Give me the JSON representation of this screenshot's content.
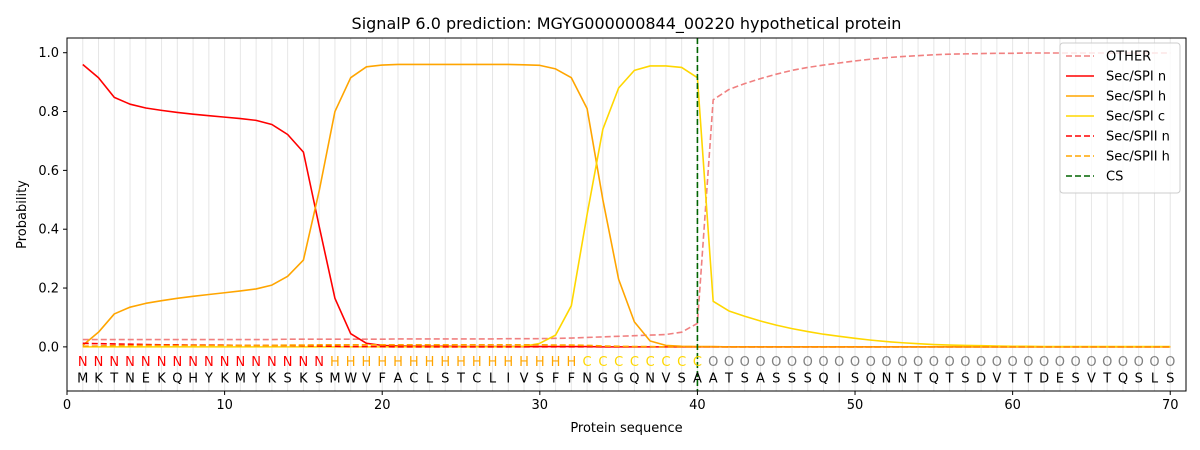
{
  "chart_data": {
    "type": "line",
    "title": "SignalP 6.0 prediction: MGYG000000844_00220 hypothetical protein",
    "xlabel": "Protein sequence",
    "ylabel": "Probability",
    "xlim": [
      0,
      71
    ],
    "ylim": [
      -0.15,
      1.05
    ],
    "xticks": [
      0,
      10,
      20,
      30,
      40,
      50,
      60,
      70
    ],
    "yticks": [
      0.0,
      0.2,
      0.4,
      0.6,
      0.8,
      1.0
    ],
    "ytick_labels": [
      "0.0",
      "0.2",
      "0.4",
      "0.6",
      "0.8",
      "1.0"
    ],
    "grid": "vertical lines at each residue",
    "legend_position": "top-right",
    "cleavage_site": 40,
    "sequence": [
      "M",
      "K",
      "T",
      "N",
      "E",
      "K",
      "Q",
      "H",
      "Y",
      "K",
      "M",
      "Y",
      "K",
      "S",
      "K",
      "S",
      "M",
      "W",
      "V",
      "F",
      "A",
      "C",
      "L",
      "S",
      "T",
      "C",
      "L",
      "I",
      "V",
      "S",
      "F",
      "F",
      "N",
      "G",
      "G",
      "Q",
      "N",
      "V",
      "S",
      "A",
      "A",
      "T",
      "S",
      "A",
      "S",
      "S",
      "S",
      "Q",
      "I",
      "S",
      "Q",
      "N",
      "N",
      "T",
      "Q",
      "T",
      "S",
      "D",
      "V",
      "T",
      "T",
      "D",
      "E",
      "S",
      "V",
      "T",
      "Q",
      "S",
      "L",
      "S"
    ],
    "annotation": [
      "N",
      "N",
      "N",
      "N",
      "N",
      "N",
      "N",
      "N",
      "N",
      "N",
      "N",
      "N",
      "N",
      "N",
      "N",
      "N",
      "H",
      "H",
      "H",
      "H",
      "H",
      "H",
      "H",
      "H",
      "H",
      "H",
      "H",
      "H",
      "H",
      "H",
      "H",
      "H",
      "C",
      "C",
      "C",
      "C",
      "C",
      "C",
      "C",
      "C",
      "O",
      "O",
      "O",
      "O",
      "O",
      "O",
      "O",
      "O",
      "O",
      "O",
      "O",
      "O",
      "O",
      "O",
      "O",
      "O",
      "O",
      "O",
      "O",
      "O",
      "O",
      "O",
      "O",
      "O",
      "O",
      "O",
      "O",
      "O",
      "O",
      "O"
    ],
    "annotation_colors": {
      "N": "#ff0000",
      "H": "#ffa500",
      "C": "#ffd700",
      "O": "#808080"
    },
    "series": [
      {
        "name": "OTHER",
        "color": "#f08080",
        "dash": "dashed",
        "values": [
          0.025,
          0.025,
          0.025,
          0.025,
          0.025,
          0.025,
          0.025,
          0.025,
          0.025,
          0.025,
          0.025,
          0.025,
          0.025,
          0.026,
          0.026,
          0.026,
          0.026,
          0.026,
          0.026,
          0.026,
          0.027,
          0.027,
          0.027,
          0.027,
          0.027,
          0.027,
          0.027,
          0.028,
          0.028,
          0.028,
          0.029,
          0.03,
          0.032,
          0.034,
          0.036,
          0.038,
          0.04,
          0.042,
          0.05,
          0.08,
          0.84,
          0.875,
          0.895,
          0.912,
          0.927,
          0.94,
          0.95,
          0.958,
          0.965,
          0.972,
          0.978,
          0.983,
          0.987,
          0.99,
          0.993,
          0.995,
          0.996,
          0.997,
          0.998,
          0.998,
          0.999,
          0.999,
          0.999,
          0.999,
          0.999,
          0.999,
          0.999,
          0.999,
          0.999,
          0.999
        ]
      },
      {
        "name": "Sec/SPI n",
        "color": "#ff0000",
        "dash": "solid",
        "values": [
          0.96,
          0.915,
          0.848,
          0.825,
          0.812,
          0.804,
          0.797,
          0.791,
          0.786,
          0.781,
          0.776,
          0.77,
          0.756,
          0.722,
          0.662,
          0.41,
          0.165,
          0.045,
          0.012,
          0.005,
          0.003,
          0.002,
          0.002,
          0.002,
          0.001,
          0.001,
          0.001,
          0.001,
          0.001,
          0.001,
          0.001,
          0.001,
          0.001,
          0.0,
          0.0,
          0.0,
          0.0,
          0.0,
          0.0,
          0.0,
          0.0,
          0.0,
          0.0,
          0.0,
          0.0,
          0.0,
          0.0,
          0.0,
          0.0,
          0.0,
          0.0,
          0.0,
          0.0,
          0.0,
          0.0,
          0.0,
          0.0,
          0.0,
          0.0,
          0.0,
          0.0,
          0.0,
          0.0,
          0.0,
          0.0,
          0.0,
          0.0,
          0.0,
          0.0,
          0.0
        ]
      },
      {
        "name": "Sec/SPI h",
        "color": "#ffa500",
        "dash": "solid",
        "values": [
          0.005,
          0.05,
          0.112,
          0.135,
          0.148,
          0.157,
          0.165,
          0.172,
          0.178,
          0.184,
          0.19,
          0.197,
          0.21,
          0.24,
          0.295,
          0.53,
          0.8,
          0.915,
          0.952,
          0.958,
          0.96,
          0.96,
          0.96,
          0.96,
          0.96,
          0.96,
          0.96,
          0.96,
          0.959,
          0.957,
          0.945,
          0.915,
          0.81,
          0.5,
          0.23,
          0.085,
          0.02,
          0.005,
          0.002,
          0.001,
          0.001,
          0.0,
          0.0,
          0.0,
          0.0,
          0.0,
          0.0,
          0.0,
          0.0,
          0.0,
          0.0,
          0.0,
          0.0,
          0.0,
          0.0,
          0.0,
          0.0,
          0.0,
          0.0,
          0.0,
          0.0,
          0.0,
          0.0,
          0.0,
          0.0,
          0.0,
          0.0,
          0.0,
          0.0,
          0.0
        ]
      },
      {
        "name": "Sec/SPI c",
        "color": "#ffd700",
        "dash": "solid",
        "values": [
          0.0,
          0.0,
          0.0,
          0.0,
          0.0,
          0.0,
          0.0,
          0.0,
          0.0,
          0.0,
          0.0,
          0.0,
          0.0,
          0.0,
          0.0,
          0.0,
          0.0,
          0.0,
          0.0,
          0.0,
          0.0,
          0.0,
          0.0,
          0.0,
          0.0,
          0.0,
          0.0,
          0.0,
          0.002,
          0.012,
          0.04,
          0.14,
          0.45,
          0.74,
          0.88,
          0.94,
          0.955,
          0.955,
          0.95,
          0.915,
          0.155,
          0.122,
          0.104,
          0.088,
          0.074,
          0.062,
          0.052,
          0.043,
          0.036,
          0.029,
          0.023,
          0.018,
          0.014,
          0.011,
          0.008,
          0.006,
          0.005,
          0.004,
          0.003,
          0.002,
          0.002,
          0.001,
          0.001,
          0.001,
          0.001,
          0.001,
          0.001,
          0.001,
          0.001,
          0.001
        ]
      },
      {
        "name": "Sec/SPII n",
        "color": "#ff0000",
        "dash": "dashed",
        "values": [
          0.012,
          0.011,
          0.01,
          0.009,
          0.008,
          0.007,
          0.007,
          0.006,
          0.006,
          0.006,
          0.005,
          0.005,
          0.005,
          0.005,
          0.004,
          0.003,
          0.002,
          0.001,
          0.001,
          0.001,
          0.0,
          0.0,
          0.0,
          0.0,
          0.0,
          0.0,
          0.0,
          0.0,
          0.0,
          0.0,
          0.0,
          0.0,
          0.0,
          0.0,
          0.0,
          0.0,
          0.0,
          0.0,
          0.0,
          0.0,
          0.0,
          0.0,
          0.0,
          0.0,
          0.0,
          0.0,
          0.0,
          0.0,
          0.0,
          0.0,
          0.0,
          0.0,
          0.0,
          0.0,
          0.0,
          0.0,
          0.0,
          0.0,
          0.0,
          0.0,
          0.0,
          0.0,
          0.0,
          0.0,
          0.0,
          0.0,
          0.0,
          0.0,
          0.0,
          0.0
        ]
      },
      {
        "name": "Sec/SPII h",
        "color": "#ffa500",
        "dash": "dashed",
        "values": [
          0.002,
          0.003,
          0.004,
          0.004,
          0.005,
          0.005,
          0.005,
          0.005,
          0.005,
          0.005,
          0.005,
          0.005,
          0.005,
          0.006,
          0.006,
          0.007,
          0.007,
          0.007,
          0.007,
          0.007,
          0.007,
          0.007,
          0.007,
          0.007,
          0.007,
          0.007,
          0.007,
          0.007,
          0.007,
          0.007,
          0.006,
          0.006,
          0.005,
          0.003,
          0.002,
          0.001,
          0.001,
          0.0,
          0.0,
          0.0,
          0.0,
          0.0,
          0.0,
          0.0,
          0.0,
          0.0,
          0.0,
          0.0,
          0.0,
          0.0,
          0.0,
          0.0,
          0.0,
          0.0,
          0.0,
          0.0,
          0.0,
          0.0,
          0.0,
          0.0,
          0.0,
          0.0,
          0.0,
          0.0,
          0.0,
          0.0,
          0.0,
          0.0,
          0.0,
          0.0
        ]
      }
    ],
    "cs_series": {
      "name": "CS",
      "color": "#006400",
      "dash": "dashed"
    }
  }
}
